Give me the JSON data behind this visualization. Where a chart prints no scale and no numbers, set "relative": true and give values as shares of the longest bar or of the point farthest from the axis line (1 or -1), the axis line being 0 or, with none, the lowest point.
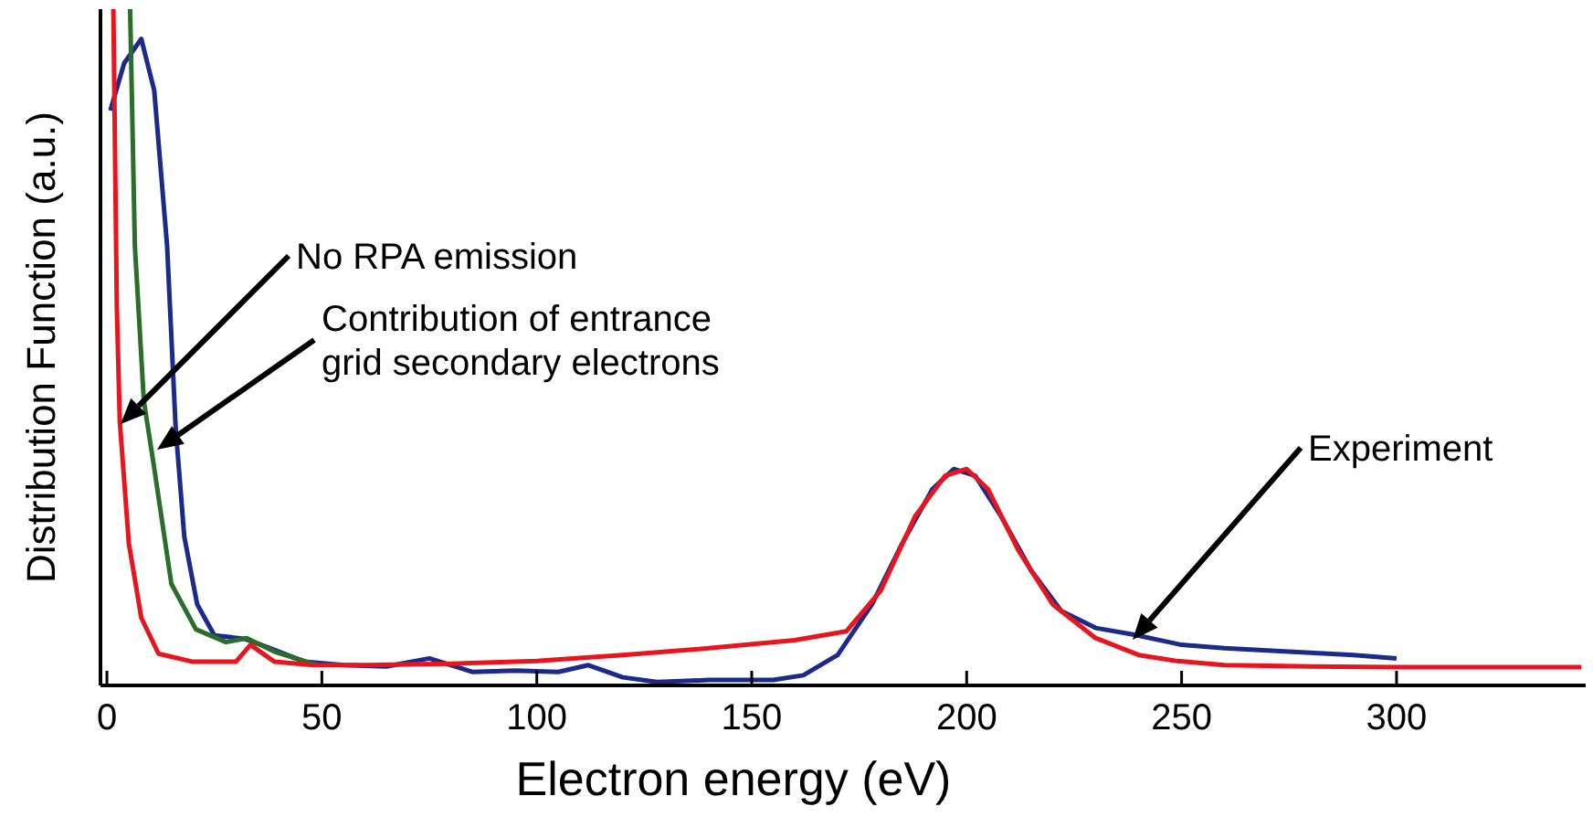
{
  "chart_data": {
    "type": "line",
    "relative": true,
    "xlabel": "Electron energy (eV)",
    "ylabel": "Distribution Function (a.u.)",
    "xlim": [
      -1.5,
      344
    ],
    "xticks": [
      0,
      50,
      100,
      150,
      200,
      250,
      300
    ],
    "grid": false,
    "line_style": "solid",
    "marker": "none",
    "series": [
      {
        "color": "#1c2a8a",
        "x": [
          0.8,
          4,
          8,
          11,
          14,
          16,
          18,
          21,
          25,
          32,
          38,
          46,
          55,
          65,
          75,
          85,
          95,
          105,
          112,
          120,
          128,
          140,
          155,
          162,
          170,
          178,
          185,
          192,
          197,
          202,
          208,
          215,
          222,
          230,
          239,
          250,
          260,
          275,
          290,
          300
        ],
        "values": [
          0.85,
          0.92,
          0.956,
          0.88,
          0.65,
          0.38,
          0.22,
          0.12,
          0.074,
          0.069,
          0.055,
          0.035,
          0.03,
          0.028,
          0.04,
          0.02,
          0.022,
          0.02,
          0.03,
          0.012,
          0.005,
          0.008,
          0.008,
          0.015,
          0.045,
          0.12,
          0.21,
          0.29,
          0.32,
          0.31,
          0.25,
          0.17,
          0.11,
          0.085,
          0.075,
          0.06,
          0.055,
          0.05,
          0.045,
          0.04
        ]
      },
      {
        "color": "#2a6e2a",
        "x": [
          5.4,
          6.5,
          8.6,
          10.8,
          15,
          20.7,
          27.7,
          32.5,
          39,
          49
        ],
        "values": [
          1,
          0.65,
          0.42,
          0.33,
          0.15,
          0.083,
          0.064,
          0.07,
          0.05,
          0.03
        ]
      },
      {
        "color": "#e8141e",
        "x": [
          1.5,
          2.3,
          3,
          5.1,
          8,
          12,
          20,
          30,
          33.4,
          39,
          48,
          60,
          80,
          100,
          120,
          140,
          160,
          172,
          180,
          188,
          195,
          200,
          205,
          212,
          220,
          230,
          240,
          249,
          260,
          280,
          300,
          320,
          343
        ],
        "values": [
          1,
          0.56,
          0.39,
          0.21,
          0.1,
          0.047,
          0.035,
          0.035,
          0.06,
          0.035,
          0.03,
          0.03,
          0.032,
          0.036,
          0.045,
          0.055,
          0.067,
          0.08,
          0.14,
          0.25,
          0.31,
          0.32,
          0.29,
          0.2,
          0.12,
          0.07,
          0.045,
          0.036,
          0.03,
          0.028,
          0.027,
          0.027,
          0.027
        ]
      }
    ],
    "annotations": [
      "No RPA emission",
      "Contribution of entrance\ngrid secondary electrons",
      "Experiment"
    ]
  }
}
